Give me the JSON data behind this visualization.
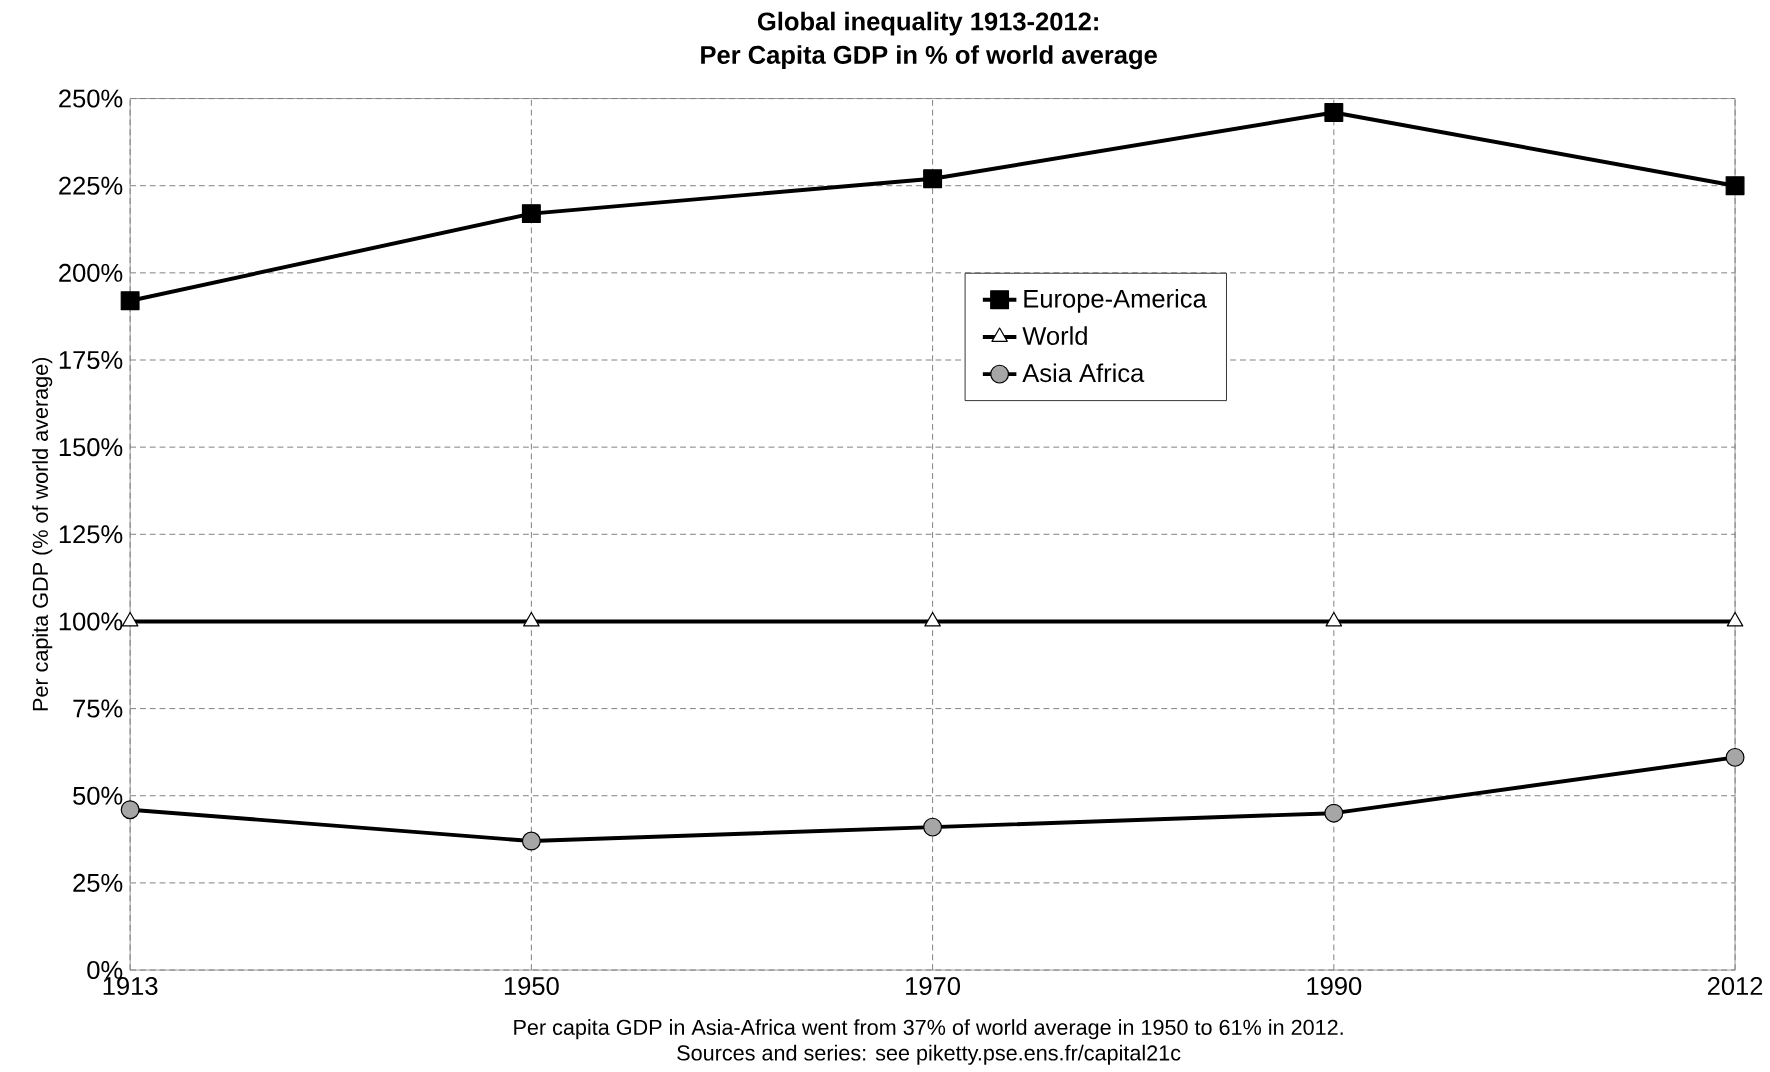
{
  "chart_data": {
    "type": "line",
    "title": "Global inequality 1913-2012:",
    "subtitle": "Per Capita GDP in % of world average",
    "ylabel": "Per capita GDP (% of world average)",
    "categories": [
      "1913",
      "1950",
      "1970",
      "1990",
      "2012"
    ],
    "series": [
      {
        "name": "Europe-America",
        "color": "#000000",
        "marker": "square",
        "values": [
          192,
          217,
          227,
          246,
          225
        ]
      },
      {
        "name": "World",
        "color": "#000000",
        "marker": "triangle",
        "values": [
          100,
          100,
          100,
          100,
          100
        ]
      },
      {
        "name": "Asia Africa",
        "color": "#000000",
        "marker": "circle",
        "values": [
          46,
          37,
          41,
          45,
          61
        ]
      }
    ],
    "ylim": [
      0,
      250
    ],
    "yticks": [
      {
        "value": 0,
        "label": "0%"
      },
      {
        "value": 25,
        "label": "25%"
      },
      {
        "value": 50,
        "label": "50%"
      },
      {
        "value": 75,
        "label": "75%"
      },
      {
        "value": 100,
        "label": "100%"
      },
      {
        "value": 125,
        "label": "125%"
      },
      {
        "value": 150,
        "label": "150%"
      },
      {
        "value": 175,
        "label": "175%"
      },
      {
        "value": 200,
        "label": "200%"
      },
      {
        "value": 225,
        "label": "225%"
      },
      {
        "value": 250,
        "label": "250%"
      }
    ],
    "grid": true,
    "legend": "center",
    "line_style": "solid",
    "annotations": [
      "Per capita GDP in Asia-Africa went from 37% of world average in 1950 to 61% in 2012.",
      "Sources and series: see piketty.pse.ens.fr/capital21c"
    ]
  }
}
